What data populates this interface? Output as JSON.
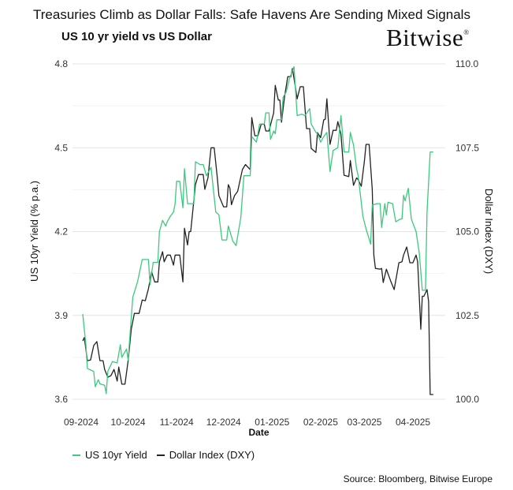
{
  "title": "Treasuries Climb as Dollar Falls: Safe Havens Are Sending Mixed Signals",
  "logo": "Bitwise",
  "source": "Source: Bloomberg, Bitwise Europe",
  "chart_data": {
    "type": "line",
    "title": "US 10 yr yield vs US Dollar",
    "xlabel": "Date",
    "ylabel": "US 10yr Yield (% p.a.)",
    "ylabel_right": "Dollar Index (DXY)",
    "x_ticks": [
      {
        "date": "2024-09-01",
        "label": "09-2024"
      },
      {
        "date": "2024-10-01",
        "label": "10-2024"
      },
      {
        "date": "2024-11-01",
        "label": "11-2024"
      },
      {
        "date": "2024-12-01",
        "label": "12-2024"
      },
      {
        "date": "2025-01-01",
        "label": "01-2025"
      },
      {
        "date": "2025-02-01",
        "label": "02-2025"
      },
      {
        "date": "2025-03-01",
        "label": "03-2025"
      },
      {
        "date": "2025-04-01",
        "label": "04-2025"
      }
    ],
    "ylim": [
      3.6,
      4.8
    ],
    "ylim_right": [
      100,
      110
    ],
    "y_ticks": [
      "3.6",
      "3.9",
      "4.2",
      "4.5",
      "4.8"
    ],
    "y_ticks_right": [
      "100.0",
      "102.5",
      "105.0",
      "107.5",
      "110.0"
    ],
    "grid": true,
    "legend": "bottom-left",
    "colors": {
      "yield": "#3dc97f",
      "dxy": "#222222"
    },
    "series": [
      {
        "name": "US 10yr Yield",
        "axis": "left",
        "points": [
          [
            "2024-09-02",
            3.905
          ],
          [
            "2024-09-04",
            3.795
          ],
          [
            "2024-09-05",
            3.71
          ],
          [
            "2024-09-09",
            3.7
          ],
          [
            "2024-09-10",
            3.645
          ],
          [
            "2024-09-12",
            3.67
          ],
          [
            "2024-09-13",
            3.655
          ],
          [
            "2024-09-16",
            3.65
          ],
          [
            "2024-09-17",
            3.62
          ],
          [
            "2024-09-18",
            3.7
          ],
          [
            "2024-09-21",
            3.735
          ],
          [
            "2024-09-24",
            3.73
          ],
          [
            "2024-09-26",
            3.795
          ],
          [
            "2024-09-27",
            3.75
          ],
          [
            "2024-09-30",
            3.78
          ],
          [
            "2024-10-01",
            3.74
          ],
          [
            "2024-10-04",
            3.965
          ],
          [
            "2024-10-07",
            4.02
          ],
          [
            "2024-10-10",
            4.1
          ],
          [
            "2024-10-14",
            4.1
          ],
          [
            "2024-10-15",
            4.01
          ],
          [
            "2024-10-17",
            4.09
          ],
          [
            "2024-10-20",
            4.09
          ],
          [
            "2024-10-21",
            4.2
          ],
          [
            "2024-10-23",
            4.24
          ],
          [
            "2024-10-25",
            4.22
          ],
          [
            "2024-10-26",
            4.235
          ],
          [
            "2024-10-28",
            4.255
          ],
          [
            "2024-10-30",
            4.27
          ],
          [
            "2024-10-31",
            4.3
          ],
          [
            "2024-11-01",
            4.38
          ],
          [
            "2024-11-03",
            4.38
          ],
          [
            "2024-11-05",
            4.285
          ],
          [
            "2024-11-06",
            4.425
          ],
          [
            "2024-11-08",
            4.3
          ],
          [
            "2024-11-12",
            4.3
          ],
          [
            "2024-11-13",
            4.45
          ],
          [
            "2024-11-16",
            4.44
          ],
          [
            "2024-11-18",
            4.44
          ],
          [
            "2024-11-20",
            4.4
          ],
          [
            "2024-11-23",
            4.43
          ],
          [
            "2024-11-26",
            4.27
          ],
          [
            "2024-11-28",
            4.26
          ],
          [
            "2024-11-30",
            4.17
          ],
          [
            "2024-12-03",
            4.17
          ],
          [
            "2024-12-04",
            4.22
          ],
          [
            "2024-12-07",
            4.165
          ],
          [
            "2024-12-09",
            4.15
          ],
          [
            "2024-12-12",
            4.25
          ],
          [
            "2024-12-14",
            4.4
          ],
          [
            "2024-12-18",
            4.4
          ],
          [
            "2024-12-19",
            4.54
          ],
          [
            "2024-12-22",
            4.52
          ],
          [
            "2024-12-24",
            4.585
          ],
          [
            "2024-12-27",
            4.585
          ],
          [
            "2024-12-28",
            4.625
          ],
          [
            "2024-12-30",
            4.625
          ],
          [
            "2024-12-31",
            4.53
          ],
          [
            "2025-01-02",
            4.56
          ],
          [
            "2025-01-03",
            4.55
          ],
          [
            "2025-01-04",
            4.6
          ],
          [
            "2025-01-07",
            4.6
          ],
          [
            "2025-01-08",
            4.68
          ],
          [
            "2025-01-10",
            4.7
          ],
          [
            "2025-01-12",
            4.745
          ],
          [
            "2025-01-15",
            4.79
          ],
          [
            "2025-01-17",
            4.615
          ],
          [
            "2025-01-20",
            4.62
          ],
          [
            "2025-01-22",
            4.615
          ],
          [
            "2025-01-25",
            4.64
          ],
          [
            "2025-01-26",
            4.585
          ],
          [
            "2025-01-29",
            4.555
          ],
          [
            "2025-01-30",
            4.55
          ],
          [
            "2025-02-01",
            4.52
          ],
          [
            "2025-02-03",
            4.54
          ],
          [
            "2025-02-05",
            4.555
          ],
          [
            "2025-02-07",
            4.415
          ],
          [
            "2025-02-09",
            4.49
          ],
          [
            "2025-02-12",
            4.5
          ],
          [
            "2025-02-14",
            4.615
          ],
          [
            "2025-02-16",
            4.485
          ],
          [
            "2025-02-19",
            4.485
          ],
          [
            "2025-02-20",
            4.555
          ],
          [
            "2025-02-22",
            4.51
          ],
          [
            "2025-02-24",
            4.425
          ],
          [
            "2025-02-25",
            4.4
          ],
          [
            "2025-02-28",
            4.255
          ],
          [
            "2025-03-02",
            4.21
          ],
          [
            "2025-03-05",
            4.155
          ],
          [
            "2025-03-06",
            4.295
          ],
          [
            "2025-03-09",
            4.3
          ],
          [
            "2025-03-11",
            4.3
          ],
          [
            "2025-03-12",
            4.215
          ],
          [
            "2025-03-14",
            4.3
          ],
          [
            "2025-03-15",
            4.26
          ],
          [
            "2025-03-16",
            4.305
          ],
          [
            "2025-03-19",
            4.3
          ],
          [
            "2025-03-21",
            4.235
          ],
          [
            "2025-03-24",
            4.245
          ],
          [
            "2025-03-25",
            4.245
          ],
          [
            "2025-03-26",
            4.33
          ],
          [
            "2025-03-27",
            4.31
          ],
          [
            "2025-03-29",
            4.355
          ],
          [
            "2025-03-31",
            4.245
          ],
          [
            "2025-04-03",
            4.2
          ],
          [
            "2025-04-05",
            4.125
          ],
          [
            "2025-04-07",
            3.99
          ],
          [
            "2025-04-09",
            3.99
          ],
          [
            "2025-04-10",
            4.27
          ],
          [
            "2025-04-12",
            4.485
          ],
          [
            "2025-04-14",
            4.485
          ]
        ]
      },
      {
        "name": "Dollar Index (DXY)",
        "axis": "right",
        "points": [
          [
            "2024-09-02",
            101.74
          ],
          [
            "2024-09-03",
            101.84
          ],
          [
            "2024-09-05",
            101.15
          ],
          [
            "2024-09-07",
            101.17
          ],
          [
            "2024-09-09",
            101.6
          ],
          [
            "2024-09-11",
            101.72
          ],
          [
            "2024-09-13",
            101.15
          ],
          [
            "2024-09-15",
            101.15
          ],
          [
            "2024-09-16",
            100.89
          ],
          [
            "2024-09-18",
            100.66
          ],
          [
            "2024-09-20",
            100.7
          ],
          [
            "2024-09-22",
            100.89
          ],
          [
            "2024-09-24",
            100.54
          ],
          [
            "2024-09-25",
            100.96
          ],
          [
            "2024-09-27",
            100.45
          ],
          [
            "2024-09-29",
            100.45
          ],
          [
            "2024-10-01",
            101.15
          ],
          [
            "2024-10-03",
            102.09
          ],
          [
            "2024-10-05",
            102.56
          ],
          [
            "2024-10-08",
            102.56
          ],
          [
            "2024-10-10",
            102.96
          ],
          [
            "2024-10-12",
            102.94
          ],
          [
            "2024-10-14",
            103.3
          ],
          [
            "2024-10-16",
            103.8
          ],
          [
            "2024-10-18",
            103.5
          ],
          [
            "2024-10-20",
            103.5
          ],
          [
            "2024-10-21",
            104.1
          ],
          [
            "2024-10-23",
            104.4
          ],
          [
            "2024-10-24",
            104.1
          ],
          [
            "2024-10-26",
            104.3
          ],
          [
            "2024-10-28",
            104.3
          ],
          [
            "2024-10-30",
            104.0
          ],
          [
            "2024-10-31",
            104.3
          ],
          [
            "2024-11-03",
            104.3
          ],
          [
            "2024-11-05",
            103.5
          ],
          [
            "2024-11-06",
            105.1
          ],
          [
            "2024-11-08",
            104.6
          ],
          [
            "2024-11-09",
            105.0
          ],
          [
            "2024-11-10",
            105.0
          ],
          [
            "2024-11-13",
            106.4
          ],
          [
            "2024-11-15",
            106.7
          ],
          [
            "2024-11-18",
            106.7
          ],
          [
            "2024-11-19",
            106.26
          ],
          [
            "2024-11-21",
            106.6
          ],
          [
            "2024-11-23",
            107.5
          ],
          [
            "2024-11-25",
            107.5
          ],
          [
            "2024-11-27",
            106.6
          ],
          [
            "2024-11-28",
            106.07
          ],
          [
            "2024-12-01",
            105.74
          ],
          [
            "2024-12-03",
            105.74
          ],
          [
            "2024-12-04",
            106.4
          ],
          [
            "2024-12-05",
            106.3
          ],
          [
            "2024-12-06",
            105.8
          ],
          [
            "2024-12-08",
            106.07
          ],
          [
            "2024-12-10",
            106.2
          ],
          [
            "2024-12-13",
            106.85
          ],
          [
            "2024-12-15",
            107.0
          ],
          [
            "2024-12-18",
            106.85
          ],
          [
            "2024-12-19",
            108.4
          ],
          [
            "2024-12-21",
            107.86
          ],
          [
            "2024-12-23",
            107.86
          ],
          [
            "2024-12-25",
            108.2
          ],
          [
            "2024-12-27",
            108.2
          ],
          [
            "2024-12-28",
            108.0
          ],
          [
            "2024-12-30",
            108.0
          ],
          [
            "2025-01-02",
            108.54
          ],
          [
            "2025-01-03",
            109.36
          ],
          [
            "2025-01-05",
            108.92
          ],
          [
            "2025-01-06",
            108.92
          ],
          [
            "2025-01-07",
            108.26
          ],
          [
            "2025-01-09",
            109.04
          ],
          [
            "2025-01-11",
            109.62
          ],
          [
            "2025-01-13",
            109.62
          ],
          [
            "2025-01-14",
            109.86
          ],
          [
            "2025-01-16",
            109.27
          ],
          [
            "2025-01-17",
            108.96
          ],
          [
            "2025-01-19",
            109.32
          ],
          [
            "2025-01-21",
            109.32
          ],
          [
            "2025-01-23",
            108.07
          ],
          [
            "2025-01-25",
            108.07
          ],
          [
            "2025-01-26",
            107.48
          ],
          [
            "2025-01-29",
            107.36
          ],
          [
            "2025-01-30",
            107.95
          ],
          [
            "2025-02-01",
            107.8
          ],
          [
            "2025-02-03",
            108.33
          ],
          [
            "2025-02-04",
            108.35
          ],
          [
            "2025-02-05",
            108.96
          ],
          [
            "2025-02-07",
            107.6
          ],
          [
            "2025-02-09",
            108.02
          ],
          [
            "2025-02-11",
            108.02
          ],
          [
            "2025-02-12",
            108.28
          ],
          [
            "2025-02-14",
            107.9
          ],
          [
            "2025-02-16",
            106.68
          ],
          [
            "2025-02-19",
            106.64
          ],
          [
            "2025-02-20",
            107.12
          ],
          [
            "2025-02-22",
            106.38
          ],
          [
            "2025-02-24",
            106.6
          ],
          [
            "2025-02-25",
            106.55
          ],
          [
            "2025-02-27",
            106.35
          ],
          [
            "2025-03-01",
            107.12
          ],
          [
            "2025-03-02",
            107.6
          ],
          [
            "2025-03-04",
            107.6
          ],
          [
            "2025-03-06",
            106.26
          ],
          [
            "2025-03-07",
            104.3
          ],
          [
            "2025-03-08",
            103.9
          ],
          [
            "2025-03-11",
            103.88
          ],
          [
            "2025-03-12",
            103.9
          ],
          [
            "2025-03-13",
            103.48
          ],
          [
            "2025-03-15",
            103.88
          ],
          [
            "2025-03-16",
            103.75
          ],
          [
            "2025-03-18",
            103.5
          ],
          [
            "2025-03-20",
            103.27
          ],
          [
            "2025-03-23",
            104.07
          ],
          [
            "2025-03-25",
            104.1
          ],
          [
            "2025-03-26",
            104.3
          ],
          [
            "2025-03-28",
            104.54
          ],
          [
            "2025-03-30",
            104.07
          ],
          [
            "2025-04-01",
            104.07
          ],
          [
            "2025-04-03",
            104.3
          ],
          [
            "2025-04-04",
            104.1
          ],
          [
            "2025-04-06",
            102.09
          ],
          [
            "2025-04-07",
            103.07
          ],
          [
            "2025-04-08",
            103.07
          ],
          [
            "2025-04-10",
            103.27
          ],
          [
            "2025-04-11",
            102.92
          ],
          [
            "2025-04-12",
            100.14
          ],
          [
            "2025-04-14",
            100.14
          ]
        ]
      }
    ]
  }
}
